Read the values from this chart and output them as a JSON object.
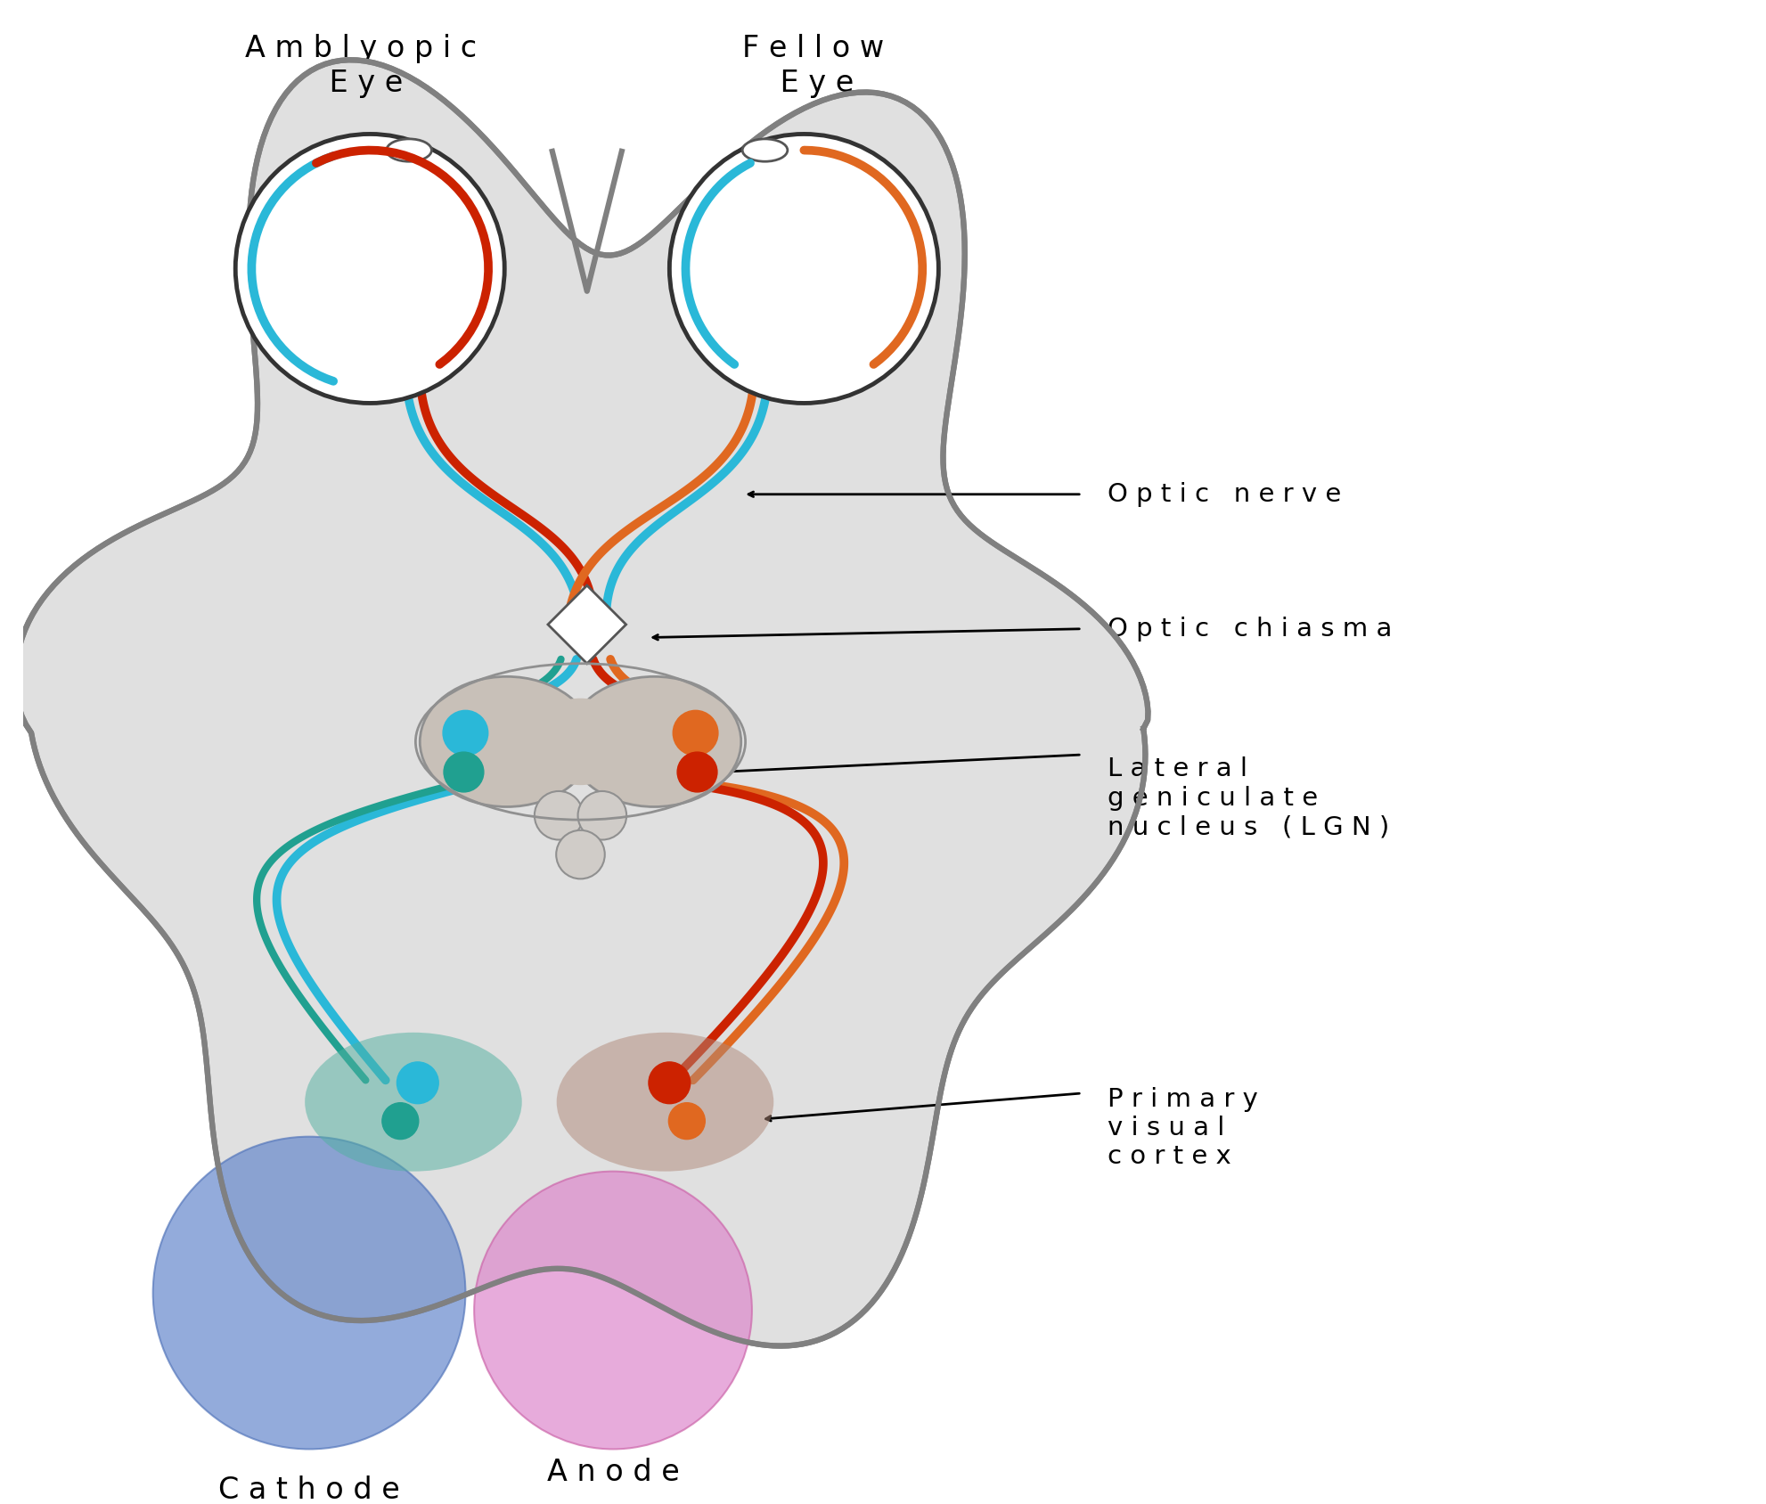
{
  "bg_color": "#ffffff",
  "brain_color": "#e0e0e0",
  "brain_outline_color": "#808080",
  "cyan_color": "#2ab8d8",
  "red_color": "#cc2200",
  "orange_color": "#e06820",
  "teal_dark": "#20a090",
  "blue_electrode_color": "#6688cc",
  "pink_electrode_color": "#dd88cc",
  "teal_cortex_color": "#50b0a0",
  "brown_cortex_color": "#b08878",
  "lgn_body_color": "#c8c0b8",
  "lgn_outline_color": "#909090",
  "labels": {
    "amblyopic_eye": "A m b l y o p i c\n E y e",
    "fellow_eye": "F e l l o w\n E y e",
    "optic_nerve": "O p t i c   n e r v e",
    "optic_chiasma": "O p t i c   c h i a s m a",
    "lgn": "L a t e r a l\ng e n i c u l a t e\nn u c l e u s   ( L G N )",
    "cathode": "C a t h o d e",
    "anode": "A n o d e",
    "primary_visual_cortex": "P r i m a r y\nv i s u a l\nc o r t e x"
  },
  "lw_nerve": 7.0,
  "lw_brain": 4.5,
  "lw_eye": 3.5
}
